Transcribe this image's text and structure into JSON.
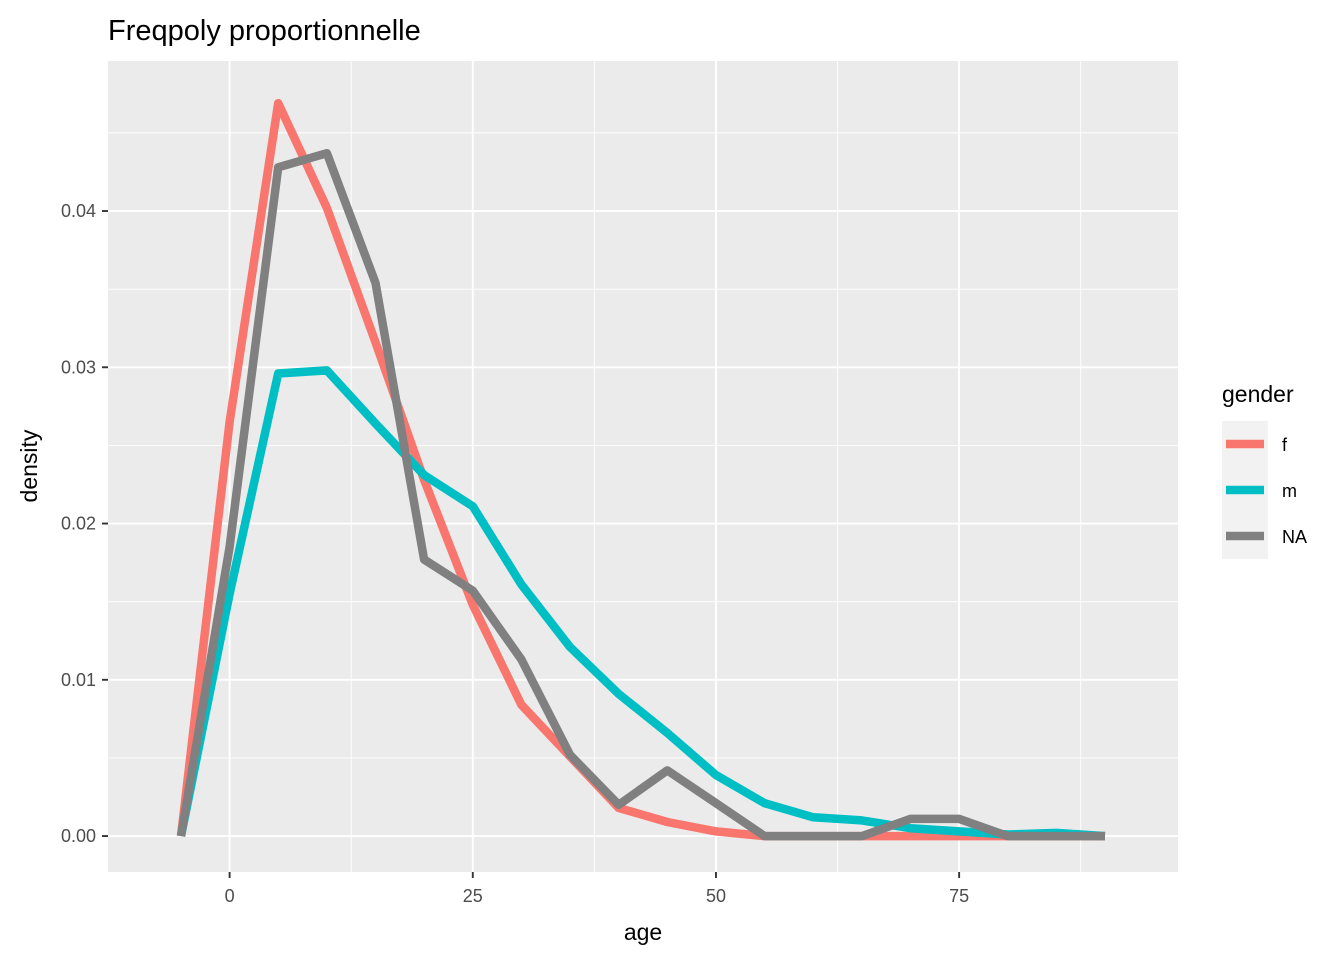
{
  "chart_data": {
    "type": "line",
    "title": "Freqpoly proportionnelle",
    "xlabel": "age",
    "ylabel": "density",
    "xlim": [
      -12.5,
      97.5
    ],
    "ylim": [
      -0.0023,
      0.0496
    ],
    "x_ticks": [
      0,
      25,
      50,
      75
    ],
    "x_tick_labels": [
      "0",
      "25",
      "50",
      "75"
    ],
    "y_ticks": [
      0,
      0.01,
      0.02,
      0.03,
      0.04
    ],
    "y_tick_labels": [
      "0.00",
      "0.01",
      "0.02",
      "0.03",
      "0.04"
    ],
    "grid": true,
    "legend": {
      "title": "gender",
      "position": "right"
    },
    "x": [
      -5,
      0,
      5,
      10,
      15,
      20,
      25,
      30,
      35,
      40,
      45,
      50,
      55,
      60,
      65,
      70,
      75,
      80,
      85,
      90
    ],
    "series": [
      {
        "name": "f",
        "color": "#F8766D",
        "values": [
          0,
          0.0265,
          0.0469,
          0.0402,
          0.0316,
          0.0228,
          0.0148,
          0.0084,
          0.0051,
          0.0018,
          0.0009,
          0.0003,
          0,
          0,
          0,
          0,
          0,
          0,
          0,
          0
        ]
      },
      {
        "name": "m",
        "color": "#00BFC4",
        "values": [
          0,
          0.0155,
          0.0296,
          0.0298,
          0.0264,
          0.0231,
          0.0211,
          0.0161,
          0.0121,
          0.0091,
          0.0066,
          0.0039,
          0.0021,
          0.0012,
          0.001,
          0.0005,
          0.0003,
          0.0001,
          0.0002,
          0
        ]
      },
      {
        "name": "NA",
        "color": "#808080",
        "values": [
          0,
          0.0185,
          0.0428,
          0.0437,
          0.0354,
          0.0177,
          0.0157,
          0.0113,
          0.0052,
          0.002,
          0.0042,
          0.0021,
          0,
          0,
          0,
          0.0011,
          0.0011,
          0,
          0,
          0
        ]
      }
    ]
  }
}
